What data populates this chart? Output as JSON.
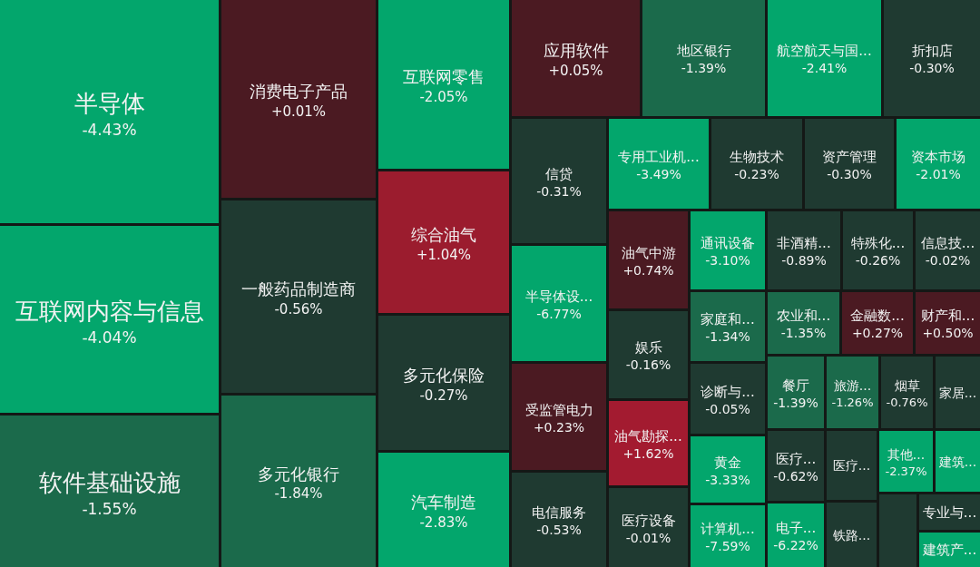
{
  "chart_data": {
    "type": "other",
    "categories": [
      "半导体",
      "互联网内容与信息",
      "软件基础设施",
      "消费电子产品",
      "一般药品制造商",
      "多元化银行",
      "互联网零售",
      "综合油气",
      "多元化保险",
      "汽车制造",
      "应用软件",
      "地区银行",
      "航空航天与国...",
      "折扣店",
      "信贷",
      "专用工业机...",
      "生物技术",
      "资产管理",
      "资本市场",
      "半导体设...",
      "受监管电力",
      "电信服务",
      "油气中游",
      "娱乐",
      "油气勘探...",
      "医疗设备",
      "通讯设备",
      "非酒精...",
      "特殊化...",
      "信息技...",
      "家庭和...",
      "农业和...",
      "金融数...",
      "财产和...",
      "诊断与...",
      "黄金",
      "计算机...",
      "餐厅",
      "旅游...",
      "烟草",
      "家居...",
      "医疗...",
      "医疗...",
      "其他...",
      "建筑...",
      "电子...",
      "铁路...",
      null,
      "专业与...",
      "建筑产..."
    ],
    "values": [
      -4.43,
      -4.04,
      -1.55,
      0.01,
      -0.56,
      -1.84,
      -2.05,
      1.04,
      -0.27,
      -2.83,
      0.05,
      -1.39,
      -2.41,
      -0.3,
      -0.31,
      -3.49,
      -0.23,
      -0.3,
      -2.01,
      -6.77,
      0.23,
      -0.53,
      0.74,
      -0.16,
      1.62,
      -0.01,
      -3.1,
      -0.89,
      -0.26,
      -0.02,
      -1.34,
      -1.35,
      0.27,
      0.5,
      -0.05,
      -3.33,
      -7.59,
      -1.39,
      -1.26,
      -0.76,
      null,
      -0.62,
      null,
      -2.37,
      null,
      -6.22,
      null,
      null,
      null,
      null
    ],
    "value_labels": [
      "-4.43%",
      "-4.04%",
      "-1.55%",
      "+0.01%",
      "-0.56%",
      "-1.84%",
      "-2.05%",
      "+1.04%",
      "-0.27%",
      "-2.83%",
      "+0.05%",
      "-1.39%",
      "-2.41%",
      "-0.30%",
      "-0.31%",
      "-3.49%",
      "-0.23%",
      "-0.30%",
      "-2.01%",
      "-6.77%",
      "+0.23%",
      "-0.53%",
      "+0.74%",
      "-0.16%",
      "+1.62%",
      "-0.01%",
      "-3.10%",
      "-0.89%",
      "-0.26%",
      "-0.02%",
      "-1.34%",
      "-1.35%",
      "+0.27%",
      "+0.50%",
      "-0.05%",
      "-3.33%",
      "-7.59%",
      "-1.39%",
      "-1.26%",
      "-0.76%",
      null,
      "-0.62%",
      null,
      "-2.37%",
      null,
      "-6.22%",
      null,
      null,
      null,
      null
    ],
    "colors": [
      "#03a66c",
      "#03a66c",
      "#1b6a4b",
      "#4b1a22",
      "#1f3a31",
      "#1b6a4b",
      "#03a66c",
      "#9b1c2e",
      "#1f3a31",
      "#03a66c",
      "#4b1a22",
      "#1b6a4b",
      "#03a66c",
      "#1f3a31",
      "#1f3a31",
      "#03a66c",
      "#1f3a31",
      "#1f3a31",
      "#03a66c",
      "#03a66c",
      "#4b1a22",
      "#1f3a31",
      "#4b1a22",
      "#1f3a31",
      "#a31b30",
      "#1f3a31",
      "#03a66c",
      "#1f3a31",
      "#1f3a31",
      "#1f3a31",
      "#1b6a4b",
      "#1b6a4b",
      "#4b1a22",
      "#4b1a22",
      "#1f3a31",
      "#03a66c",
      "#03a66c",
      "#1b6a4b",
      "#1b6a4b",
      "#1f3a31",
      "#1f3a31",
      "#1f3a31",
      "#1f3a31",
      "#03a66c",
      "#03a66c",
      "#03a66c",
      "#1f3a31",
      "#1f3a31",
      "#1f3a31",
      "#03a66c"
    ]
  }
}
